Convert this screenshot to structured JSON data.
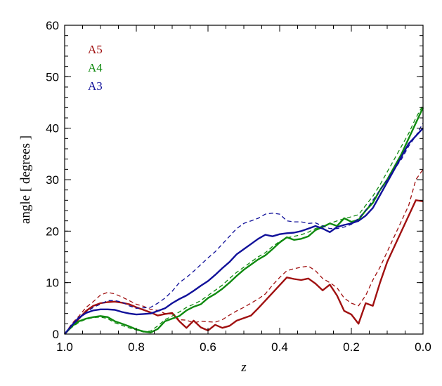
{
  "chart_data": {
    "type": "line",
    "title": "",
    "xlabel": "z",
    "ylabel": "angle [ degrees ]",
    "xlim": [
      1.0,
      0.0
    ],
    "ylim": [
      0,
      60
    ],
    "x_reversed": true,
    "x_ticks": [
      {
        "value": 1.0,
        "label": "1.0"
      },
      {
        "value": 0.8,
        "label": "0.8"
      },
      {
        "value": 0.6,
        "label": "0.6"
      },
      {
        "value": 0.4,
        "label": "0.4"
      },
      {
        "value": 0.2,
        "label": "0.2"
      },
      {
        "value": 0.0,
        "label": "0.0"
      }
    ],
    "y_ticks": [
      {
        "value": 0,
        "label": "0"
      },
      {
        "value": 10,
        "label": "10"
      },
      {
        "value": 20,
        "label": "20"
      },
      {
        "value": 30,
        "label": "30"
      },
      {
        "value": 40,
        "label": "40"
      },
      {
        "value": 50,
        "label": "50"
      },
      {
        "value": 60,
        "label": "60"
      }
    ],
    "grid": false,
    "legend_position": "top-left",
    "legend": [
      {
        "label": "A5",
        "color": "#a01010"
      },
      {
        "label": "A4",
        "color": "#0f8a0f"
      },
      {
        "label": "A3",
        "color": "#10109a"
      }
    ],
    "series": [
      {
        "name": "A5",
        "style": "solid",
        "color": "#a01010",
        "x": [
          1.0,
          0.98,
          0.96,
          0.94,
          0.92,
          0.9,
          0.88,
          0.86,
          0.84,
          0.82,
          0.8,
          0.78,
          0.76,
          0.74,
          0.72,
          0.7,
          0.68,
          0.66,
          0.64,
          0.62,
          0.6,
          0.58,
          0.56,
          0.54,
          0.52,
          0.5,
          0.48,
          0.46,
          0.44,
          0.42,
          0.4,
          0.38,
          0.36,
          0.34,
          0.32,
          0.3,
          0.28,
          0.26,
          0.24,
          0.22,
          0.2,
          0.18,
          0.16,
          0.14,
          0.12,
          0.1,
          0.08,
          0.06,
          0.04,
          0.02,
          0.0
        ],
        "y": [
          0,
          1.5,
          3,
          4.5,
          5.5,
          6,
          6.2,
          6.3,
          6.1,
          5.8,
          5.2,
          4.7,
          4.2,
          3.6,
          3.9,
          4.1,
          2.5,
          1.2,
          2.6,
          1.3,
          0.7,
          1.8,
          1.2,
          1.6,
          2.6,
          3.1,
          3.6,
          5.0,
          6.5,
          8.0,
          9.5,
          11.0,
          10.7,
          10.5,
          10.8,
          9.8,
          8.5,
          9.6,
          7.5,
          4.5,
          3.8,
          2.0,
          6.0,
          5.5,
          10.0,
          14.0,
          17.0,
          20.0,
          23.0,
          26.0,
          25.8
        ]
      },
      {
        "name": "A5",
        "style": "dashed",
        "color": "#a01010",
        "x": [
          1.0,
          0.98,
          0.96,
          0.94,
          0.92,
          0.9,
          0.88,
          0.86,
          0.84,
          0.82,
          0.8,
          0.78,
          0.76,
          0.74,
          0.72,
          0.7,
          0.68,
          0.66,
          0.64,
          0.62,
          0.6,
          0.58,
          0.56,
          0.54,
          0.52,
          0.5,
          0.48,
          0.46,
          0.44,
          0.42,
          0.4,
          0.38,
          0.36,
          0.34,
          0.32,
          0.3,
          0.28,
          0.26,
          0.24,
          0.22,
          0.2,
          0.18,
          0.16,
          0.14,
          0.12,
          0.1,
          0.08,
          0.06,
          0.04,
          0.02,
          0.0
        ],
        "y": [
          0,
          2,
          3.5,
          5.2,
          6.3,
          7.6,
          8.1,
          7.8,
          7.2,
          6.5,
          5.8,
          5.4,
          4.8,
          4.6,
          4.0,
          3.9,
          2.8,
          2.7,
          2.2,
          2.5,
          2.4,
          2.3,
          2.8,
          3.7,
          4.5,
          5.2,
          6.0,
          6.8,
          7.8,
          9.5,
          11.0,
          12.3,
          12.7,
          13.0,
          13.2,
          12.3,
          10.8,
          10.0,
          9.0,
          7.0,
          6.0,
          5.5,
          7.5,
          10.5,
          13.0,
          16.0,
          19.0,
          22.0,
          25.0,
          30.0,
          32.0
        ]
      },
      {
        "name": "A4",
        "style": "solid",
        "color": "#0f8a0f",
        "x": [
          1.0,
          0.98,
          0.96,
          0.94,
          0.92,
          0.9,
          0.88,
          0.86,
          0.84,
          0.82,
          0.8,
          0.78,
          0.76,
          0.74,
          0.72,
          0.7,
          0.68,
          0.66,
          0.64,
          0.62,
          0.6,
          0.58,
          0.56,
          0.54,
          0.52,
          0.5,
          0.48,
          0.46,
          0.44,
          0.42,
          0.4,
          0.38,
          0.36,
          0.34,
          0.32,
          0.3,
          0.28,
          0.26,
          0.24,
          0.22,
          0.2,
          0.18,
          0.16,
          0.14,
          0.12,
          0.1,
          0.08,
          0.06,
          0.04,
          0.02,
          0.0
        ],
        "y": [
          0,
          1.5,
          2.5,
          3.0,
          3.3,
          3.5,
          3.3,
          2.5,
          2.0,
          1.5,
          0.9,
          0.5,
          0.3,
          1.0,
          2.5,
          3.0,
          3.5,
          4.6,
          5.3,
          5.8,
          7.0,
          7.8,
          8.8,
          10.0,
          11.3,
          12.5,
          13.5,
          14.5,
          15.3,
          16.5,
          17.8,
          18.8,
          18.3,
          18.5,
          19.0,
          20.2,
          20.8,
          21.5,
          21.0,
          22.5,
          21.8,
          22.2,
          24.0,
          25.5,
          28.0,
          30.0,
          32.5,
          35.0,
          38.0,
          41.0,
          44.0
        ]
      },
      {
        "name": "A4",
        "style": "dashed",
        "color": "#0f8a0f",
        "x": [
          1.0,
          0.98,
          0.96,
          0.94,
          0.92,
          0.9,
          0.88,
          0.86,
          0.84,
          0.82,
          0.8,
          0.78,
          0.76,
          0.74,
          0.72,
          0.7,
          0.68,
          0.66,
          0.64,
          0.62,
          0.6,
          0.58,
          0.56,
          0.54,
          0.52,
          0.5,
          0.48,
          0.46,
          0.44,
          0.42,
          0.4,
          0.38,
          0.36,
          0.34,
          0.32,
          0.3,
          0.28,
          0.26,
          0.24,
          0.22,
          0.2,
          0.18,
          0.16,
          0.14,
          0.12,
          0.1,
          0.08,
          0.06,
          0.04,
          0.02,
          0.0
        ],
        "y": [
          0,
          1.3,
          2.3,
          2.9,
          3.2,
          3.3,
          3.0,
          2.2,
          1.7,
          1.2,
          0.8,
          0.4,
          0.6,
          1.6,
          2.8,
          3.5,
          4.3,
          5.2,
          5.8,
          6.5,
          7.5,
          8.5,
          9.5,
          10.8,
          12.0,
          13.0,
          14.0,
          15.0,
          15.8,
          17.0,
          18.0,
          18.7,
          19.0,
          19.3,
          19.8,
          20.5,
          21.0,
          21.5,
          22.0,
          22.4,
          22.8,
          23.2,
          25.0,
          26.8,
          29.0,
          31.5,
          34.0,
          36.5,
          39.0,
          42.0,
          44.5
        ]
      },
      {
        "name": "A3",
        "style": "solid",
        "color": "#10109a",
        "x": [
          1.0,
          0.98,
          0.96,
          0.94,
          0.92,
          0.9,
          0.88,
          0.86,
          0.84,
          0.82,
          0.8,
          0.78,
          0.76,
          0.74,
          0.72,
          0.7,
          0.68,
          0.66,
          0.64,
          0.62,
          0.6,
          0.58,
          0.56,
          0.54,
          0.52,
          0.5,
          0.48,
          0.46,
          0.44,
          0.42,
          0.4,
          0.38,
          0.36,
          0.34,
          0.32,
          0.3,
          0.28,
          0.26,
          0.24,
          0.22,
          0.2,
          0.18,
          0.16,
          0.14,
          0.12,
          0.1,
          0.08,
          0.06,
          0.04,
          0.02,
          0.0
        ],
        "y": [
          0,
          1.7,
          3.2,
          4.1,
          4.6,
          4.8,
          4.8,
          4.7,
          4.3,
          4.0,
          3.8,
          3.9,
          4.0,
          4.5,
          5.0,
          6.0,
          6.8,
          7.5,
          8.4,
          9.4,
          10.3,
          11.5,
          12.8,
          14.0,
          15.5,
          16.5,
          17.5,
          18.5,
          19.3,
          19.0,
          19.4,
          19.6,
          19.7,
          20.0,
          20.5,
          21.0,
          20.5,
          19.8,
          20.8,
          21.2,
          21.5,
          22.0,
          23.0,
          24.5,
          27.0,
          29.5,
          32.0,
          34.5,
          37.0,
          38.5,
          40.0
        ]
      },
      {
        "name": "A3",
        "style": "dashed",
        "color": "#10109a",
        "x": [
          1.0,
          0.98,
          0.96,
          0.94,
          0.92,
          0.9,
          0.88,
          0.86,
          0.84,
          0.82,
          0.8,
          0.78,
          0.76,
          0.74,
          0.72,
          0.7,
          0.68,
          0.66,
          0.64,
          0.62,
          0.6,
          0.58,
          0.56,
          0.54,
          0.52,
          0.5,
          0.48,
          0.46,
          0.44,
          0.42,
          0.4,
          0.38,
          0.36,
          0.34,
          0.32,
          0.3,
          0.28,
          0.26,
          0.24,
          0.22,
          0.2,
          0.18,
          0.16,
          0.14,
          0.12,
          0.1,
          0.08,
          0.06,
          0.04,
          0.02,
          0.0
        ],
        "y": [
          0,
          1.6,
          3.0,
          4.2,
          5.2,
          5.8,
          6.5,
          6.5,
          6.2,
          5.5,
          5.0,
          5.1,
          5.2,
          6.0,
          7.0,
          8.3,
          10.0,
          11.0,
          12.2,
          13.5,
          14.8,
          16.0,
          17.5,
          19.0,
          20.5,
          21.5,
          22.0,
          22.5,
          23.3,
          23.5,
          23.3,
          22.0,
          21.8,
          21.8,
          21.5,
          21.6,
          21.0,
          20.5,
          20.5,
          20.8,
          21.3,
          22.5,
          24.0,
          26.0,
          28.0,
          30.0,
          32.0,
          34.0,
          36.5,
          38.5,
          41.0
        ]
      }
    ]
  }
}
